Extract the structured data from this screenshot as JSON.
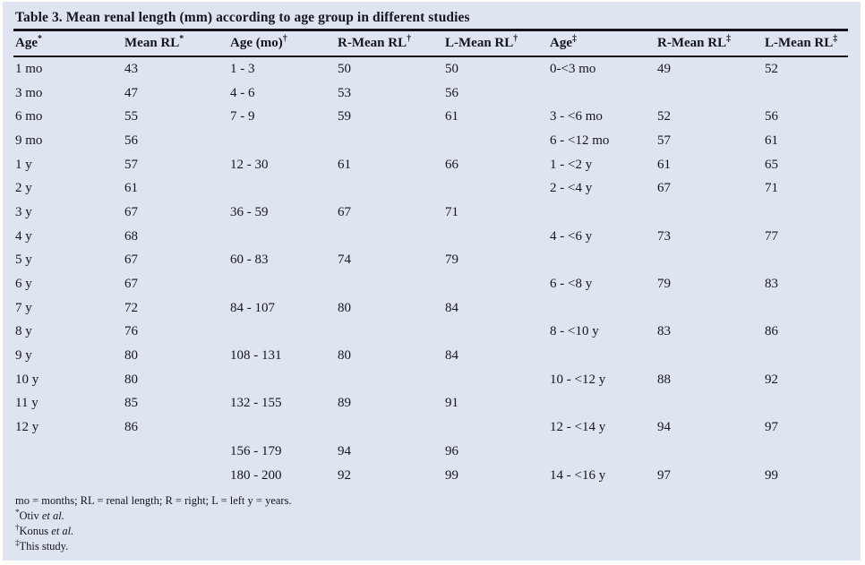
{
  "title": "Table 3. Mean renal length (mm) according to age group in different studies",
  "table": {
    "headers": [
      {
        "label": "Age",
        "sup": "*"
      },
      {
        "label": "Mean  RL",
        "sup": "*"
      },
      {
        "label": "Age (mo)",
        "sup": "†"
      },
      {
        "label": "R-Mean RL",
        "sup": "†"
      },
      {
        "label": "L-Mean RL",
        "sup": "†"
      },
      {
        "label": "Age",
        "sup": "‡"
      },
      {
        "label": "R-Mean RL",
        "sup": "‡"
      },
      {
        "label": "L-Mean RL",
        "sup": "‡"
      }
    ],
    "rows": [
      [
        "1 mo",
        "43",
        "1 - 3",
        "50",
        "50",
        "0-<3 mo",
        "49",
        "52"
      ],
      [
        "3 mo",
        "47",
        "4 - 6",
        "53",
        "56",
        "",
        "",
        ""
      ],
      [
        "6 mo",
        "55",
        "7 - 9",
        "59",
        "61",
        "3 - <6 mo",
        "52",
        "56"
      ],
      [
        "9 mo",
        "56",
        "",
        "",
        "",
        "6 - <12 mo",
        "57",
        "61"
      ],
      [
        "1 y",
        "57",
        "12 - 30",
        "61",
        "66",
        "1 - <2 y",
        "61",
        "65"
      ],
      [
        "2 y",
        "61",
        "",
        "",
        "",
        "2 - <4 y",
        "67",
        "71"
      ],
      [
        "3 y",
        "67",
        "36 - 59",
        "67",
        "71",
        "",
        "",
        ""
      ],
      [
        "4 y",
        "68",
        "",
        "",
        "",
        "4 - <6 y",
        "73",
        "77"
      ],
      [
        "5 y",
        "67",
        "60 - 83",
        "74",
        "79",
        "",
        "",
        ""
      ],
      [
        "6 y",
        "67",
        "",
        "",
        "",
        "6 - <8 y",
        "79",
        "83"
      ],
      [
        "7 y",
        "72",
        "84 - 107",
        "80",
        "84",
        "",
        "",
        ""
      ],
      [
        "8 y",
        "76",
        "",
        "",
        "",
        "8 - <10 y",
        "83",
        "86"
      ],
      [
        "9 y",
        "80",
        "108 - 131",
        "80",
        "84",
        "",
        "",
        ""
      ],
      [
        "10 y",
        "80",
        "",
        "",
        "",
        "10 - <12 y",
        "88",
        "92"
      ],
      [
        "11 y",
        "85",
        "132 - 155",
        "89",
        "91",
        "",
        "",
        ""
      ],
      [
        "12 y",
        "86",
        "",
        "",
        "",
        "12 - <14 y",
        "94",
        "97"
      ],
      [
        "",
        "",
        "156 - 179",
        "94",
        "96",
        "",
        "",
        ""
      ],
      [
        "",
        "",
        "180 - 200",
        "92",
        "99",
        "14 - <16 y",
        "97",
        "99"
      ]
    ]
  },
  "footnotes": [
    {
      "sup": "",
      "text": "mo = months; RL = renal length; R = right; L = left y = years.",
      "italic": ""
    },
    {
      "sup": "*",
      "text": "Otiv ",
      "italic": "et al."
    },
    {
      "sup": "†",
      "text": "Konus ",
      "italic": "et al."
    },
    {
      "sup": "‡",
      "text": "This study.",
      "italic": ""
    }
  ],
  "colors": {
    "panel_background": "#dee4f0",
    "text": "#15161f",
    "rule": "#14151c"
  }
}
